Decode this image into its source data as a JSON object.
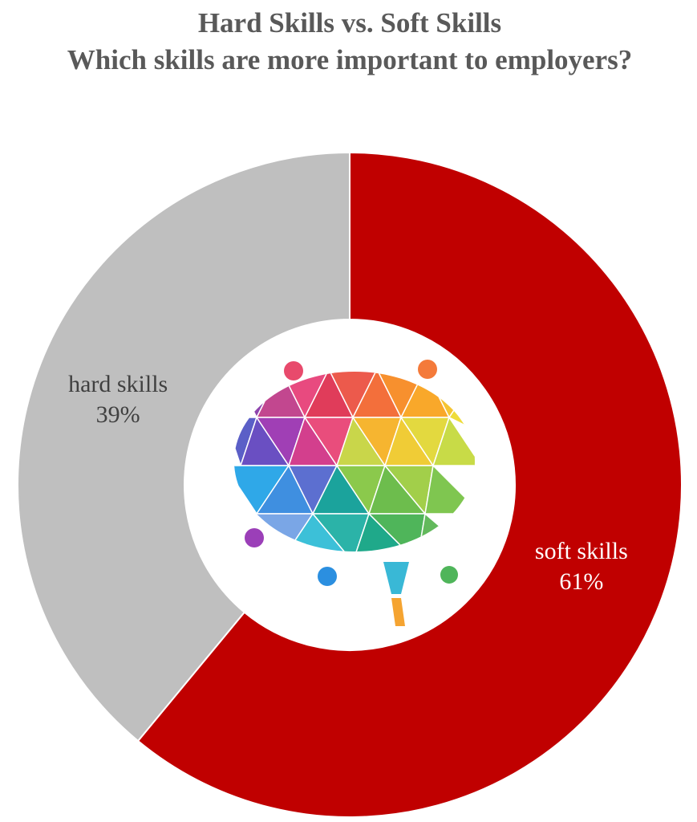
{
  "chart_data": {
    "type": "donut",
    "title": [
      "Hard Skills vs. Soft Skills",
      "Which skills are more important to employers?"
    ],
    "categories": [
      "soft skills",
      "hard skills"
    ],
    "values": [
      61,
      39
    ],
    "value_labels": [
      "61%",
      "39%"
    ],
    "colors": [
      "#c00000",
      "#bfbfbf"
    ],
    "label_colors": [
      "#ffffff",
      "#404040"
    ]
  }
}
